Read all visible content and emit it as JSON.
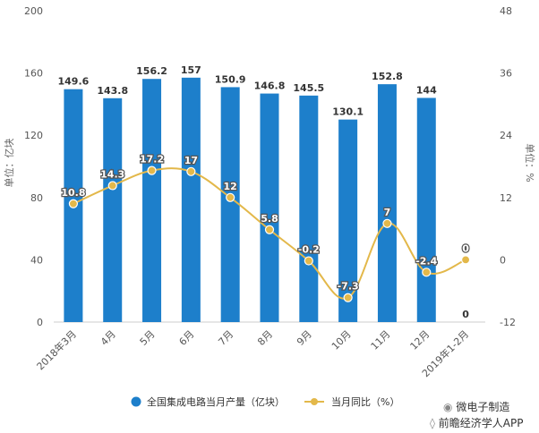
{
  "chart_data": {
    "type": "bar",
    "categories": [
      "2018年3月",
      "4月",
      "5月",
      "6月",
      "7月",
      "8月",
      "9月",
      "10月",
      "11月",
      "12月",
      "2019年1-2月"
    ],
    "series": [
      {
        "name": "全国集成电路当月产量（亿块）",
        "type": "bar",
        "axis": "left",
        "values": [
          149.6,
          143.8,
          156.2,
          157,
          150.9,
          146.8,
          145.5,
          130.1,
          152.8,
          144,
          0
        ],
        "labels": [
          "149.6",
          "143.8",
          "156.2",
          "157",
          "150.9",
          "146.8",
          "145.5",
          "130.1",
          "152.8",
          "144",
          "0"
        ],
        "color": "#1d7fcb"
      },
      {
        "name": "当月同比（%）",
        "type": "line",
        "axis": "right",
        "values": [
          10.8,
          14.3,
          17.2,
          17,
          12,
          5.8,
          -0.2,
          -7.3,
          7,
          -2.4,
          0
        ],
        "labels": [
          "10.8",
          "14.3",
          "17.2",
          "17",
          "12",
          "5.8",
          "-0.2",
          "-7.3",
          "7",
          "-2.4",
          "0"
        ],
        "color": "#e3b84a"
      }
    ],
    "ylabel": "单位：亿块",
    "y2label": "单位：%",
    "ylim": [
      0,
      200
    ],
    "y2lim": [
      -12,
      48
    ],
    "yticks": [
      "0",
      "40",
      "80",
      "120",
      "160",
      "200"
    ],
    "y2ticks": [
      "-12",
      "0",
      "12",
      "24",
      "36",
      "48"
    ],
    "grid": false,
    "legend_position": "bottom"
  },
  "watermark": {
    "line1": "微电子制造",
    "line2": "前瞻经济学人APP"
  }
}
